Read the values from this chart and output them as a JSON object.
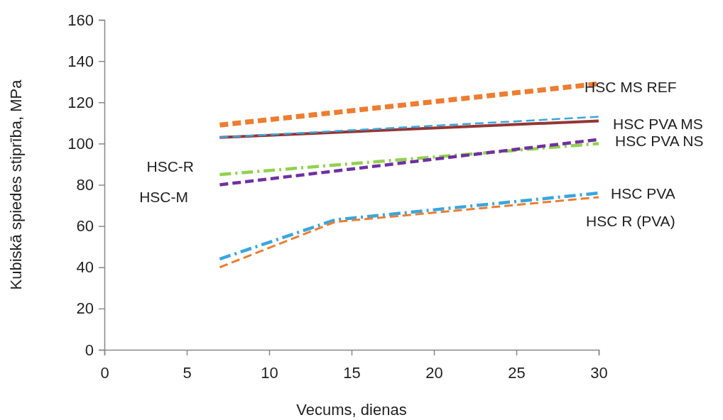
{
  "chart_data": {
    "type": "line",
    "xlabel": "Vecums, dienas",
    "ylabel": "Kubiskā spiedes stiprība, MPa",
    "xlim": [
      0,
      30
    ],
    "xticks": [
      0,
      5,
      10,
      15,
      20,
      25,
      30
    ],
    "ylim": [
      0,
      160
    ],
    "yticks": [
      0,
      20,
      40,
      60,
      80,
      100,
      120,
      140,
      160
    ],
    "grid": false,
    "legend": false,
    "marker": "none",
    "series": [
      {
        "name": "HSC MS REF",
        "color": "#ed7d31",
        "x": [
          7,
          30
        ],
        "values": [
          109,
          129
        ],
        "line_style": "dashed"
      },
      {
        "name": "HSC PVA NS",
        "color": "#943634",
        "x": [
          7,
          30
        ],
        "values": [
          103,
          111
        ],
        "line_style": "solid"
      },
      {
        "name": "HSC PVA MS",
        "color": "#3aa6dd",
        "x": [
          7,
          30
        ],
        "values": [
          103,
          113
        ],
        "line_style": "dashed"
      },
      {
        "name": "HSC-R",
        "color": "#92d050",
        "x": [
          7,
          30
        ],
        "values": [
          85,
          100
        ],
        "line_style": "dashdot"
      },
      {
        "name": "HSC-M",
        "color": "#7030a0",
        "x": [
          7,
          30
        ],
        "values": [
          80,
          102
        ],
        "line_style": "dashed"
      },
      {
        "name": "HSC PVA",
        "color": "#3aa6dd",
        "x": [
          7,
          14,
          30
        ],
        "values": [
          44,
          63,
          76
        ],
        "line_style": "dashdot"
      },
      {
        "name": "HSC R (PVA)",
        "color": "#ed7d31",
        "x": [
          7,
          14,
          30
        ],
        "values": [
          40,
          62,
          74
        ],
        "line_style": "dashed"
      }
    ]
  }
}
